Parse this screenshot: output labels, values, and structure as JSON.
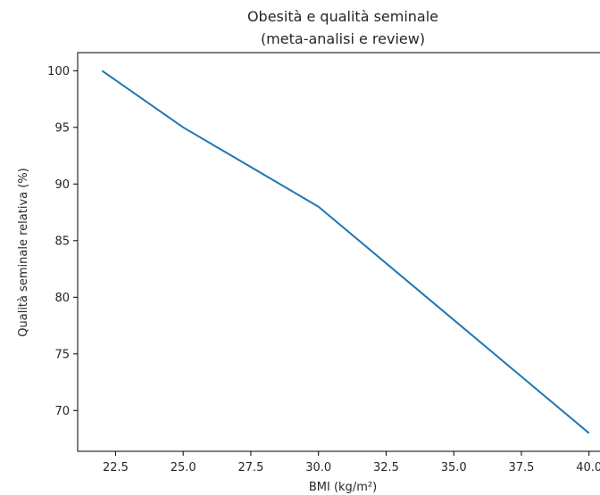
{
  "chart_data": {
    "type": "line",
    "title": "Obesità e qualità seminale",
    "subtitle": "(meta-analisi e review)",
    "xlabel": "BMI (kg/m²)",
    "ylabel": "Qualità seminale relativa (%)",
    "xlim": [
      21.1,
      40.9
    ],
    "ylim": [
      66.4,
      101.6
    ],
    "xticks": [
      "22.5",
      "25.0",
      "27.5",
      "30.0",
      "32.5",
      "35.0",
      "37.5",
      "40.0"
    ],
    "yticks": [
      "70",
      "75",
      "80",
      "85",
      "90",
      "95",
      "100"
    ],
    "grid": false,
    "legend": "none",
    "series": [
      {
        "color": "#1f77b4",
        "points": [
          {
            "x": 22,
            "y": 100
          },
          {
            "x": 25,
            "y": 95
          },
          {
            "x": 30,
            "y": 88
          },
          {
            "x": 35,
            "y": 78
          },
          {
            "x": 40,
            "y": 68
          }
        ]
      }
    ]
  }
}
